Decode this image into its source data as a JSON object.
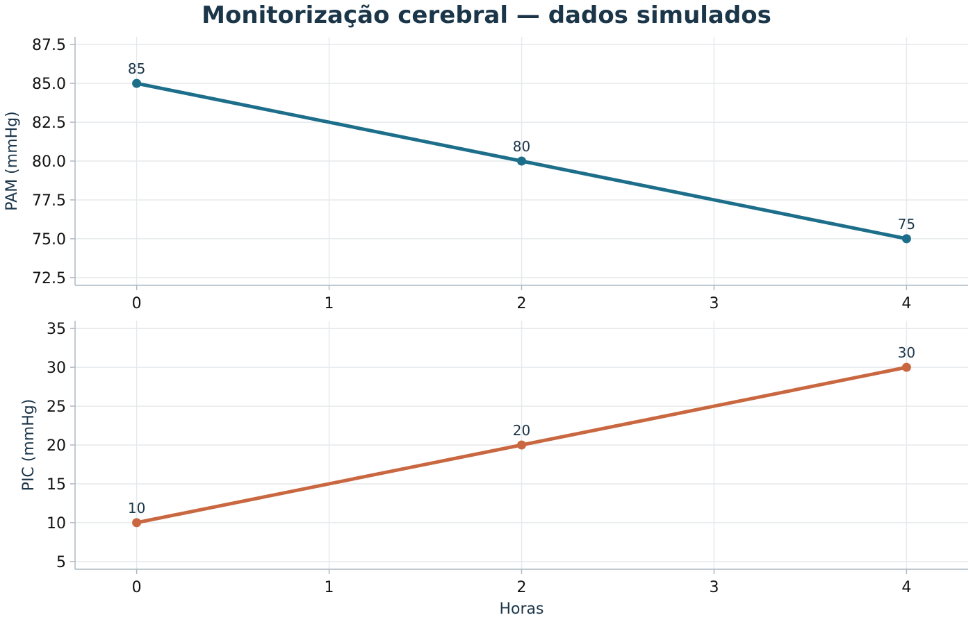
{
  "title": "Monitorização cerebral — dados simulados",
  "chart_data": [
    {
      "type": "line",
      "x": [
        0,
        2,
        4
      ],
      "series": [
        {
          "values": [
            85,
            80,
            75
          ],
          "color": "#1c6e8a"
        }
      ],
      "data_labels": [
        "85",
        "80",
        "75"
      ],
      "xlabel": "",
      "ylabel": "PAM (mmHg)",
      "xlim": [
        -0.32,
        4.32
      ],
      "ylim": [
        72.0,
        88.0
      ],
      "xticks": [
        0,
        1,
        2,
        3,
        4
      ],
      "xtick_labels": [
        "0",
        "1",
        "2",
        "3",
        "4"
      ],
      "yticks": [
        72.5,
        75.0,
        77.5,
        80.0,
        82.5,
        85.0,
        87.5
      ],
      "ytick_labels": [
        "72.5",
        "75.0",
        "77.5",
        "80.0",
        "82.5",
        "85.0",
        "87.5"
      ],
      "grid": true
    },
    {
      "type": "line",
      "x": [
        0,
        2,
        4
      ],
      "series": [
        {
          "values": [
            10,
            20,
            30
          ],
          "color": "#c96740"
        }
      ],
      "data_labels": [
        "10",
        "20",
        "30"
      ],
      "xlabel": "Horas",
      "ylabel": "PIC (mmHg)",
      "xlim": [
        -0.32,
        4.32
      ],
      "ylim": [
        4.0,
        36.0
      ],
      "xticks": [
        0,
        1,
        2,
        3,
        4
      ],
      "xtick_labels": [
        "0",
        "1",
        "2",
        "3",
        "4"
      ],
      "yticks": [
        5,
        10,
        15,
        20,
        25,
        30,
        35
      ],
      "ytick_labels": [
        "5",
        "10",
        "15",
        "20",
        "25",
        "30",
        "35"
      ],
      "grid": true
    }
  ]
}
